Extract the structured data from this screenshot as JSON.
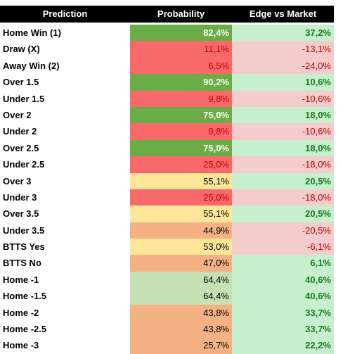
{
  "table": {
    "headers": [
      "Prediction",
      "Probability",
      "Edge vs Market"
    ],
    "rows": [
      [
        "Home Win (1)",
        "82,4%",
        "37,2%"
      ],
      [
        "Draw (X)",
        "11,1%",
        "-13,1%"
      ],
      [
        "Away Win (2)",
        "6,5%",
        "-24,0%"
      ],
      [
        "Over 1.5",
        "90,2%",
        "10,6%"
      ],
      [
        "Under 1.5",
        "9,8%",
        "-10,6%"
      ],
      [
        "Over 2",
        "75,0%",
        "18,0%"
      ],
      [
        "Under 2",
        "9,8%",
        "-10,6%"
      ],
      [
        "Over 2.5",
        "75,0%",
        "18,0%"
      ],
      [
        "Under 2.5",
        "25,0%",
        "-18,0%"
      ],
      [
        "Over 3",
        "55,1%",
        "20,5%"
      ],
      [
        "Under 3",
        "25,0%",
        "-18,0%"
      ],
      [
        "Over 3.5",
        "55,1%",
        "20,5%"
      ],
      [
        "Under 3.5",
        "44,9%",
        "-20,5%"
      ],
      [
        "BTTS Yes",
        "53,0%",
        "-6,1%"
      ],
      [
        "BTTS No",
        "47,0%",
        "6,1%"
      ],
      [
        "Home -1",
        "64,4%",
        "40,6%"
      ],
      [
        "Home -1.5",
        "64,4%",
        "40,6%"
      ],
      [
        "Home -2",
        "43,8%",
        "33,7%"
      ],
      [
        "Home -2.5",
        "43,8%",
        "33,7%"
      ],
      [
        "Home -3",
        "25,7%",
        "22,2%"
      ]
    ]
  }
}
